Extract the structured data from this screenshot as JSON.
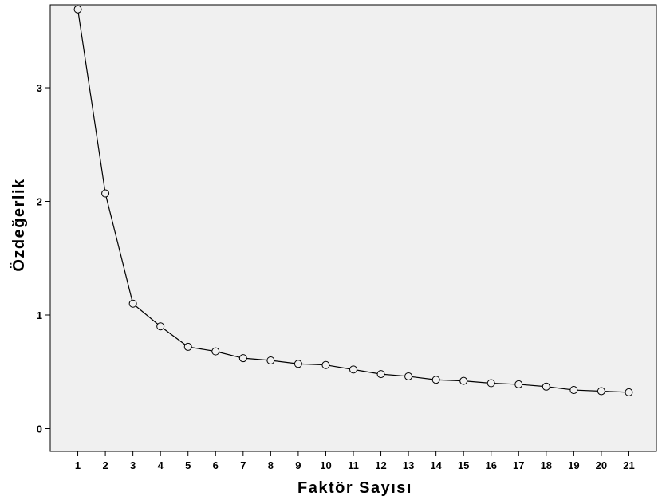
{
  "chart_data": {
    "type": "line",
    "title": "",
    "xlabel": "Faktör Sayısı",
    "ylabel": "Özdeğerlik",
    "categories": [
      "1",
      "2",
      "3",
      "4",
      "5",
      "6",
      "7",
      "8",
      "9",
      "10",
      "11",
      "12",
      "13",
      "14",
      "15",
      "16",
      "17",
      "18",
      "19",
      "20",
      "21"
    ],
    "series": [
      {
        "values": [
          3.69,
          2.07,
          1.1,
          0.9,
          0.72,
          0.68,
          0.62,
          0.6,
          0.57,
          0.56,
          0.52,
          0.48,
          0.46,
          0.43,
          0.42,
          0.4,
          0.39,
          0.37,
          0.34,
          0.33,
          0.32
        ]
      }
    ],
    "y_ticks": [
      "0",
      "1",
      "2",
      "3"
    ],
    "ylim": [
      -0.2,
      3.73
    ],
    "xlim": [
      0,
      22
    ],
    "grid": false,
    "legend": "none",
    "colors": {
      "plot_background": "#f0f0f0",
      "line": "#000000",
      "marker_fill": "none",
      "axis": "#000000"
    }
  }
}
